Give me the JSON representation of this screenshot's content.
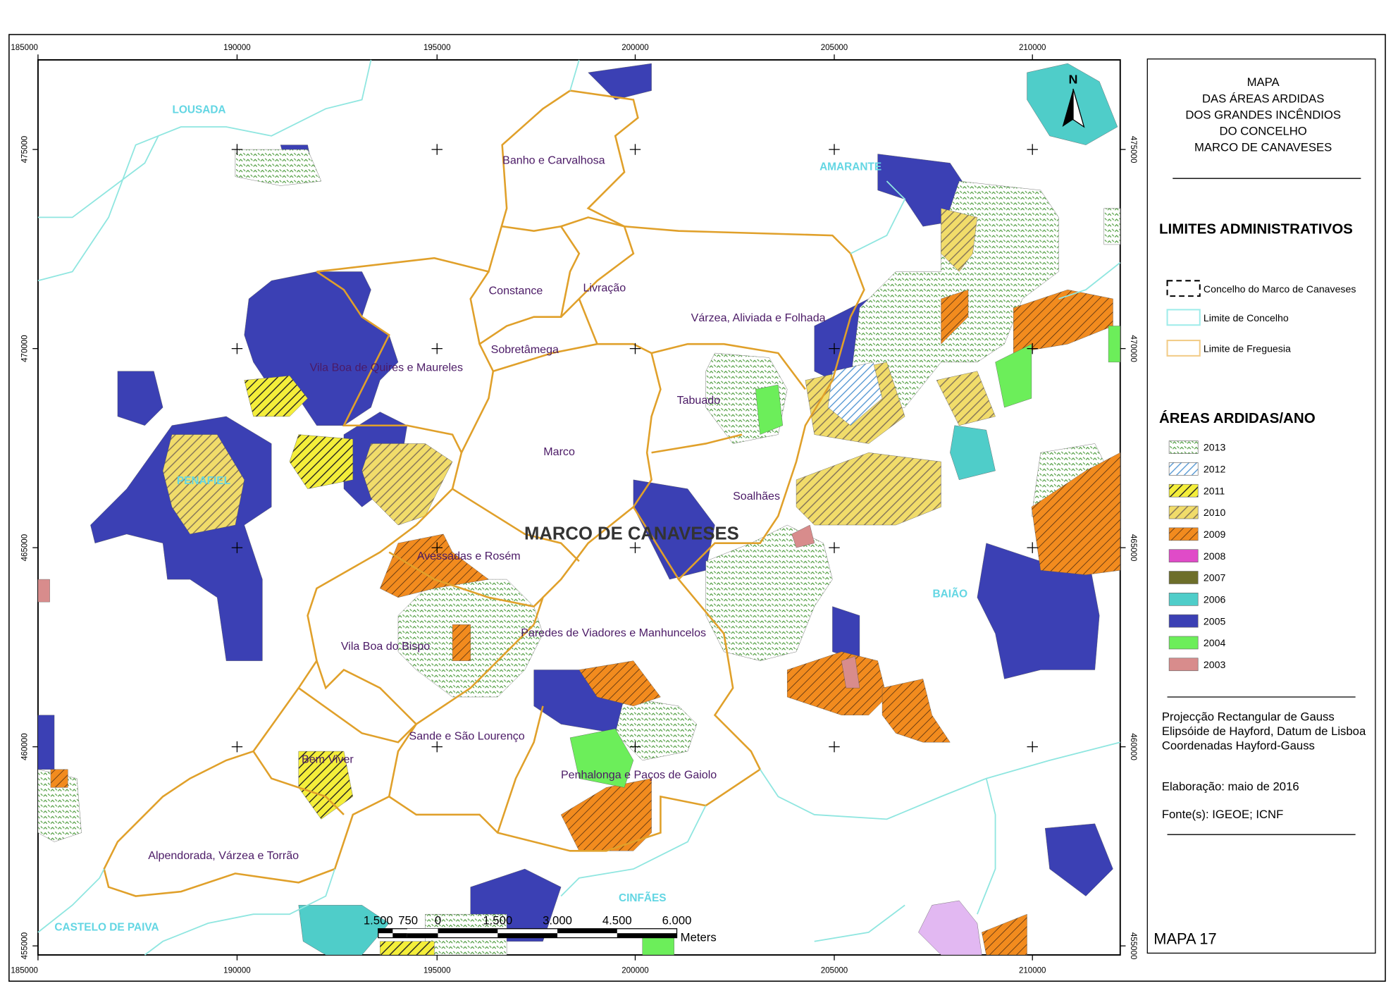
{
  "map": {
    "x_ticks": [
      "185000",
      "190000",
      "195000",
      "200000",
      "205000",
      "210000"
    ],
    "y_ticks": [
      "475000",
      "470000",
      "465000",
      "460000",
      "455000"
    ],
    "concelhos": [
      "LOUSADA",
      "AMARANTE",
      "PENAFIEL",
      "BAIÃO",
      "CINFÃES",
      "CASTELO DE PAIVA"
    ],
    "freguesias": [
      "Banho e Carvalhosa",
      "Constance",
      "Livração",
      "Sobretâmega",
      "Várzea, Aliviada e Folhada",
      "Vila Boa de Quires e Maureles",
      "Tabuado",
      "Marco",
      "Soalhães",
      "Avessadas e Rosém",
      "Paredes de Viadores e Manhuncelos",
      "Vila Boa do Bispo",
      "Sande e São Lourenço",
      "Bem Viver",
      "Penhalonga e Paços de Gaiolo",
      "Alpendorada, Várzea e Torrão"
    ],
    "main_label": "MARCO DE CANAVESES",
    "north": "N",
    "scale_bar": {
      "labels": [
        "1.500",
        "750",
        "0",
        "1.500",
        "3.000",
        "4.500",
        "6.000"
      ],
      "unit": "Meters"
    }
  },
  "legend": {
    "title": [
      "MAPA",
      "DAS ÁREAS ARDIDAS",
      "DOS GRANDES INCÊNDIOS",
      "DO CONCELHO",
      "MARCO DE CANAVESES"
    ],
    "admin_heading": "LIMITES ADMINISTRATIVOS",
    "admin_items": [
      "Concelho do Marco de Canaveses",
      "Limite de Concelho",
      "Limite de Freguesia"
    ],
    "years_heading": "ÁREAS ARDIDAS/ANO",
    "years": [
      "2013",
      "2012",
      "2011",
      "2010",
      "2009",
      "2008",
      "2007",
      "2006",
      "2005",
      "2004",
      "2003"
    ],
    "projection": [
      "Projecção Rectangular de Gauss",
      "Elipsóide de Hayford, Datum de Lisboa",
      "Coordenadas Hayford-Gauss"
    ],
    "date": "Elaboração: maio de 2016",
    "sources": "Fonte(s): IGEOE; ICNF",
    "map_number": "MAPA 17"
  }
}
